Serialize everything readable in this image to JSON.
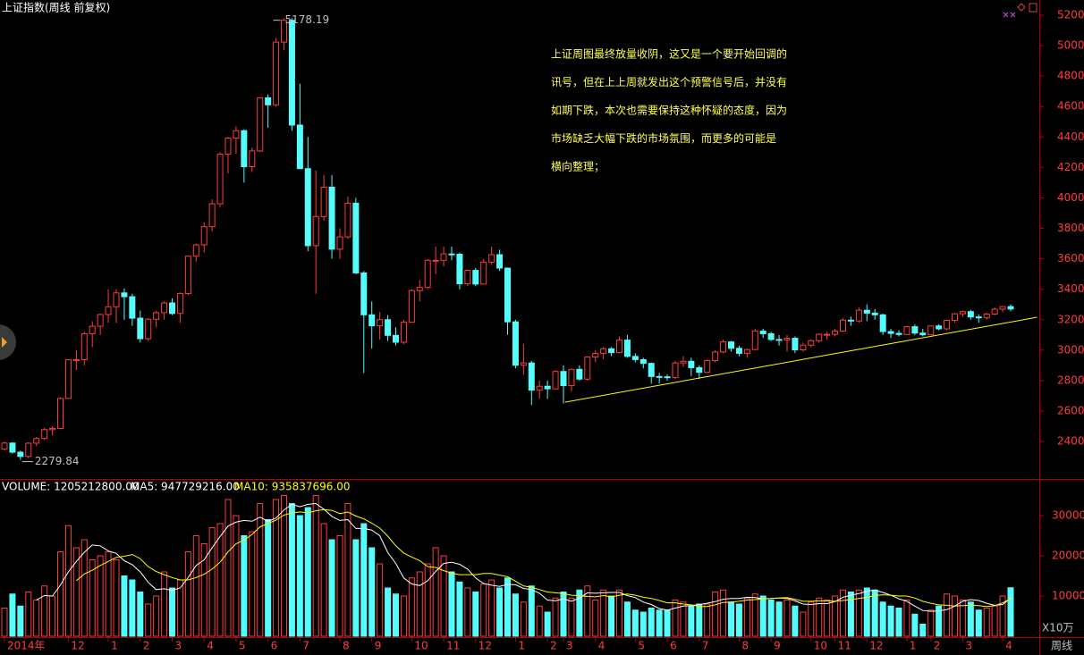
{
  "chart_data": {
    "type": "candlestick",
    "title": "上证指数(周线 前复权)",
    "annotation_lines": [
      "上证周图最终放量收阴，这又是一个要开始回调的",
      "讯号，但在上上周就发出这个预警信号后，并没有",
      "如期下跌，本次也需要保持这种怀疑的态度，因为",
      "市场缺乏大幅下跌的市场氛围，而更多的可能是",
      "横向整理；"
    ],
    "volume_legend": [
      "VOLUME: 1205212800.00",
      "MA5: 947729216.00",
      "MA10: 935837696.00"
    ],
    "volume_unit": "X10万",
    "period_label": "周线",
    "up_color": "#ff3c3c",
    "down_color": "#54fcfc",
    "ma5_color": "#ffffff",
    "ma10_color": "#ffff00",
    "axis_color": "#b40000",
    "ylim": [
      2160,
      5270
    ],
    "yticks": [
      2400,
      2600,
      2800,
      3000,
      3200,
      3400,
      3600,
      3800,
      4000,
      4200,
      4400,
      4600,
      4800,
      5000,
      5200
    ],
    "volume_ylim": [
      0,
      38000
    ],
    "volume_yticks": [
      10000,
      20000,
      30000
    ],
    "xticks": [
      {
        "value": 0,
        "label": "2014年"
      },
      {
        "value": 8,
        "label": "12"
      },
      {
        "value": 13,
        "label": "1"
      },
      {
        "value": 17,
        "label": "2"
      },
      {
        "value": 21,
        "label": "3"
      },
      {
        "value": 25,
        "label": "4"
      },
      {
        "value": 29,
        "label": "5"
      },
      {
        "value": 33,
        "label": "6"
      },
      {
        "value": 37,
        "label": "7"
      },
      {
        "value": 42,
        "label": "8"
      },
      {
        "value": 46,
        "label": "9"
      },
      {
        "value": 51,
        "label": "10"
      },
      {
        "value": 55,
        "label": "11"
      },
      {
        "value": 59,
        "label": "12"
      },
      {
        "value": 64,
        "label": "1"
      },
      {
        "value": 68,
        "label": "2"
      },
      {
        "value": 70,
        "label": "3"
      },
      {
        "value": 74,
        "label": "4"
      },
      {
        "value": 79,
        "label": "5"
      },
      {
        "value": 83,
        "label": "6"
      },
      {
        "value": 87,
        "label": "7"
      },
      {
        "value": 92,
        "label": "8"
      },
      {
        "value": 96,
        "label": "9"
      },
      {
        "value": 101,
        "label": "10"
      },
      {
        "value": 104,
        "label": "11"
      },
      {
        "value": 108,
        "label": "12"
      },
      {
        "value": 113,
        "label": "1"
      },
      {
        "value": 116,
        "label": "2"
      },
      {
        "value": 120,
        "label": "3"
      },
      {
        "value": 125,
        "label": "4"
      }
    ],
    "trendline": {
      "x": [
        70.2,
        129.3
      ],
      "values": [
        2658,
        3216
      ],
      "color": "#ffff00"
    },
    "candles": [
      [
        2350,
        2400,
        2340,
        2390
      ],
      [
        2390,
        2395,
        2320,
        2330
      ],
      [
        2330,
        2340,
        2279.84,
        2302
      ],
      [
        2302,
        2395,
        2290,
        2389
      ],
      [
        2389,
        2430,
        2370,
        2420
      ],
      [
        2420,
        2490,
        2410,
        2478
      ],
      [
        2478,
        2500,
        2440,
        2486
      ],
      [
        2486,
        2690,
        2480,
        2683
      ],
      [
        2683,
        2940,
        2680,
        2937
      ],
      [
        2937,
        3000,
        2870,
        2938
      ],
      [
        2938,
        3120,
        2900,
        3108
      ],
      [
        3108,
        3190,
        3020,
        3157
      ],
      [
        3157,
        3240,
        3100,
        3234
      ],
      [
        3234,
        3400,
        3180,
        3285
      ],
      [
        3285,
        3400,
        3180,
        3376
      ],
      [
        3376,
        3406,
        3200,
        3351
      ],
      [
        3351,
        3370,
        3160,
        3210
      ],
      [
        3210,
        3260,
        3050,
        3075
      ],
      [
        3075,
        3210,
        3060,
        3203
      ],
      [
        3203,
        3260,
        3150,
        3246
      ],
      [
        3246,
        3320,
        3200,
        3310
      ],
      [
        3310,
        3340,
        3230,
        3241
      ],
      [
        3241,
        3380,
        3180,
        3372
      ],
      [
        3372,
        3620,
        3360,
        3617
      ],
      [
        3617,
        3700,
        3580,
        3691
      ],
      [
        3691,
        3840,
        3640,
        3811
      ],
      [
        3811,
        3990,
        3780,
        3961
      ],
      [
        3961,
        4300,
        3940,
        4287
      ],
      [
        4287,
        4400,
        4160,
        4393
      ],
      [
        4393,
        4470,
        4290,
        4441
      ],
      [
        4441,
        4450,
        4100,
        4205
      ],
      [
        4205,
        4330,
        4170,
        4308
      ],
      [
        4308,
        4660,
        4300,
        4657
      ],
      [
        4657,
        4680,
        4460,
        4611
      ],
      [
        4611,
        5050,
        4600,
        5023
      ],
      [
        5023,
        5178.19,
        4970,
        5166
      ],
      [
        5166,
        5180,
        4440,
        4478
      ],
      [
        4478,
        4750,
        4190,
        4192
      ],
      [
        4192,
        4400,
        3650,
        3686
      ],
      [
        3686,
        4180,
        3370,
        3877
      ],
      [
        3877,
        4150,
        3850,
        4070
      ],
      [
        4070,
        4150,
        3600,
        3663
      ],
      [
        3663,
        3800,
        3600,
        3744
      ],
      [
        3744,
        4010,
        3730,
        3965
      ],
      [
        3965,
        4000,
        3500,
        3507
      ],
      [
        3507,
        3520,
        2850,
        3232
      ],
      [
        3232,
        3320,
        3010,
        3160
      ],
      [
        3160,
        3250,
        3070,
        3200
      ],
      [
        3200,
        3230,
        3060,
        3097
      ],
      [
        3097,
        3150,
        3030,
        3052
      ],
      [
        3052,
        3200,
        3040,
        3183
      ],
      [
        3183,
        3400,
        3180,
        3391
      ],
      [
        3391,
        3460,
        3320,
        3412
      ],
      [
        3412,
        3600,
        3400,
        3590
      ],
      [
        3590,
        3680,
        3500,
        3590
      ],
      [
        3590,
        3680,
        3550,
        3632
      ],
      [
        3632,
        3680,
        3590,
        3630
      ],
      [
        3630,
        3640,
        3400,
        3436
      ],
      [
        3436,
        3530,
        3420,
        3524
      ],
      [
        3524,
        3540,
        3420,
        3434
      ],
      [
        3434,
        3600,
        3430,
        3578
      ],
      [
        3578,
        3680,
        3560,
        3627
      ],
      [
        3627,
        3660,
        3520,
        3539
      ],
      [
        3539,
        3540,
        3100,
        3186
      ],
      [
        3186,
        3200,
        2880,
        2901
      ],
      [
        2901,
        3040,
        2840,
        2916
      ],
      [
        2916,
        2930,
        2640,
        2737
      ],
      [
        2737,
        2800,
        2680,
        2763
      ],
      [
        2763,
        2800,
        2680,
        2746
      ],
      [
        2746,
        2870,
        2740,
        2860
      ],
      [
        2860,
        2900,
        2650,
        2767
      ],
      [
        2767,
        2880,
        2730,
        2874
      ],
      [
        2874,
        2900,
        2800,
        2810
      ],
      [
        2810,
        2960,
        2800,
        2955
      ],
      [
        2955,
        3000,
        2920,
        2979
      ],
      [
        2979,
        3020,
        2940,
        3009
      ],
      [
        3009,
        3020,
        2960,
        2984
      ],
      [
        2984,
        3090,
        2980,
        3066
      ],
      [
        3066,
        3100,
        2950,
        2959
      ],
      [
        2959,
        2980,
        2920,
        2938
      ],
      [
        2938,
        2950,
        2880,
        2913
      ],
      [
        2913,
        2920,
        2780,
        2827
      ],
      [
        2827,
        2850,
        2780,
        2825
      ],
      [
        2825,
        2840,
        2800,
        2821
      ],
      [
        2821,
        2930,
        2810,
        2916
      ],
      [
        2916,
        2960,
        2890,
        2927
      ],
      [
        2927,
        2950,
        2830,
        2885
      ],
      [
        2885,
        2900,
        2810,
        2854
      ],
      [
        2854,
        2940,
        2850,
        2932
      ],
      [
        2932,
        3000,
        2920,
        2988
      ],
      [
        2988,
        3070,
        2980,
        3054
      ],
      [
        3054,
        3060,
        2990,
        3012
      ],
      [
        3012,
        3030,
        2960,
        2979
      ],
      [
        2979,
        3010,
        2950,
        3004
      ],
      [
        3004,
        3140,
        3000,
        3125
      ],
      [
        3125,
        3140,
        3080,
        3108
      ],
      [
        3108,
        3120,
        3060,
        3070
      ],
      [
        3070,
        3100,
        3030,
        3067
      ],
      [
        3067,
        3100,
        2990,
        3078
      ],
      [
        3078,
        3090,
        2980,
        3002
      ],
      [
        3002,
        3050,
        2990,
        3033
      ],
      [
        3033,
        3070,
        3020,
        3062
      ],
      [
        3062,
        3110,
        3050,
        3104
      ],
      [
        3104,
        3120,
        3070,
        3104
      ],
      [
        3104,
        3140,
        3090,
        3125
      ],
      [
        3125,
        3210,
        3120,
        3197
      ],
      [
        3197,
        3220,
        3160,
        3192
      ],
      [
        3192,
        3280,
        3180,
        3262
      ],
      [
        3262,
        3300,
        3190,
        3243
      ],
      [
        3243,
        3270,
        3200,
        3232
      ],
      [
        3232,
        3240,
        3100,
        3122
      ],
      [
        3122,
        3140,
        3080,
        3110
      ],
      [
        3110,
        3130,
        3090,
        3103
      ],
      [
        3103,
        3160,
        3100,
        3154
      ],
      [
        3154,
        3170,
        3100,
        3112
      ],
      [
        3112,
        3140,
        3090,
        3101
      ],
      [
        3101,
        3160,
        3100,
        3159
      ],
      [
        3159,
        3170,
        3130,
        3140
      ],
      [
        3140,
        3200,
        3130,
        3196
      ],
      [
        3196,
        3245,
        3180,
        3239
      ],
      [
        3239,
        3260,
        3220,
        3253
      ],
      [
        3253,
        3265,
        3200,
        3218
      ],
      [
        3218,
        3235,
        3180,
        3212
      ],
      [
        3212,
        3245,
        3200,
        3237
      ],
      [
        3237,
        3280,
        3230,
        3269
      ],
      [
        3269,
        3290,
        3250,
        3286
      ],
      [
        3286,
        3300,
        3255,
        3270
      ]
    ],
    "volumes": [
      7000,
      10500,
      7500,
      11000,
      9000,
      12500,
      10000,
      21000,
      27500,
      22000,
      24000,
      19000,
      20000,
      21000,
      19000,
      15000,
      14000,
      11000,
      8000,
      10000,
      16000,
      12000,
      14000,
      21000,
      25000,
      23000,
      27000,
      28000,
      34000,
      30000,
      25000,
      26000,
      33000,
      29000,
      34000,
      35000,
      33000,
      30000,
      32000,
      35000,
      28000,
      24000,
      25000,
      33000,
      24000,
      28000,
      22000,
      18000,
      12000,
      10500,
      10000,
      14500,
      16000,
      18000,
      22000,
      20000,
      16000,
      13500,
      12000,
      11000,
      13000,
      14000,
      12000,
      14500,
      10500,
      8500,
      12500,
      7500,
      6000,
      9500,
      11000,
      9500,
      11500,
      12500,
      9000,
      11500,
      10000,
      11500,
      8500,
      6500,
      6000,
      7000,
      6500,
      6500,
      9000,
      8500,
      7500,
      8000,
      8000,
      11000,
      11500,
      8500,
      8000,
      9500,
      10500,
      10000,
      9000,
      8500,
      9000,
      7500,
      6000,
      8500,
      9500,
      9000,
      10000,
      11500,
      11000,
      11500,
      12000,
      11500,
      8500,
      7500,
      7000,
      9000,
      5500,
      3000,
      6500,
      7500,
      10500,
      10000,
      9000,
      8500,
      6500,
      7000,
      7500,
      10000,
      12052.128
    ],
    "ma5": [
      null,
      null,
      null,
      null,
      9000,
      10100,
      10000,
      12700,
      16000,
      18600,
      20900,
      22700,
      22500,
      21200,
      20600,
      18800,
      17800,
      16000,
      13400,
      11600,
      11800,
      11400,
      12000,
      14600,
      17600,
      19000,
      22000,
      24800,
      27400,
      28400,
      28800,
      28600,
      29600,
      28600,
      29400,
      31400,
      32800,
      32200,
      32800,
      33000,
      31600,
      29800,
      28800,
      29000,
      26800,
      26800,
      26400,
      25000,
      20800,
      18100,
      14500,
      13000,
      12600,
      13800,
      16100,
      18100,
      18400,
      17900,
      16700,
      14500,
      13100,
      12700,
      12400,
      12900,
      12800,
      11900,
      11600,
      10700,
      9000,
      8800,
      9300,
      8700,
      9500,
      10800,
      10700,
      10800,
      10900,
      10900,
      10100,
      9600,
      8500,
      7900,
      6900,
      6500,
      7000,
      7500,
      7600,
      7900,
      8200,
      8600,
      9200,
      9400,
      9400,
      9700,
      9600,
      9300,
      9400,
      9500,
      9400,
      8800,
      8000,
      7900,
      8100,
      8100,
      8600,
      9700,
      10200,
      10600,
      11200,
      11500,
      10900,
      10200,
      9300,
      8700,
      7500,
      6400,
      6200,
      6300,
      6600,
      7500,
      8700,
      9100,
      8900,
      8200,
      7700,
      7900,
      9477.29216
    ],
    "ma10": [
      null,
      null,
      null,
      null,
      null,
      null,
      null,
      null,
      null,
      13800,
      15500,
      16400,
      17600,
      18600,
      19600,
      19900,
      20300,
      19300,
      17300,
      16100,
      15300,
      14600,
      14000,
      14000,
      14600,
      15400,
      16700,
      18400,
      21000,
      23000,
      23900,
      25300,
      27200,
      28000,
      28900,
      30100,
      30700,
      30900,
      30700,
      31200,
      31500,
      31300,
      30500,
      30900,
      29900,
      29200,
      28100,
      26900,
      24900,
      22500,
      20700,
      19700,
      18800,
      17300,
      17100,
      16300,
      15700,
      15300,
      15300,
      15300,
      15600,
      15600,
      15200,
      14800,
      13700,
      12500,
      12200,
      11600,
      11000,
      10800,
      10600,
      10200,
      10100,
      9900,
      9800,
      10100,
      9800,
      10200,
      10500,
      10200,
      9700,
      9400,
      8900,
      8300,
      8300,
      8000,
      7800,
      7400,
      7400,
      7800,
      8400,
      8500,
      8700,
      9000,
      9100,
      9300,
      9400,
      9500,
      9600,
      9200,
      8700,
      8700,
      8800,
      8800,
      8700,
      8900,
      9100,
      9400,
      9700,
      10100,
      10300,
      10200,
      10000,
      10000,
      9500,
      8700,
      8200,
      7800,
      7700,
      7500,
      7600,
      7700,
      7600,
      7400,
      7600,
      8300,
      9358.37696
    ]
  }
}
